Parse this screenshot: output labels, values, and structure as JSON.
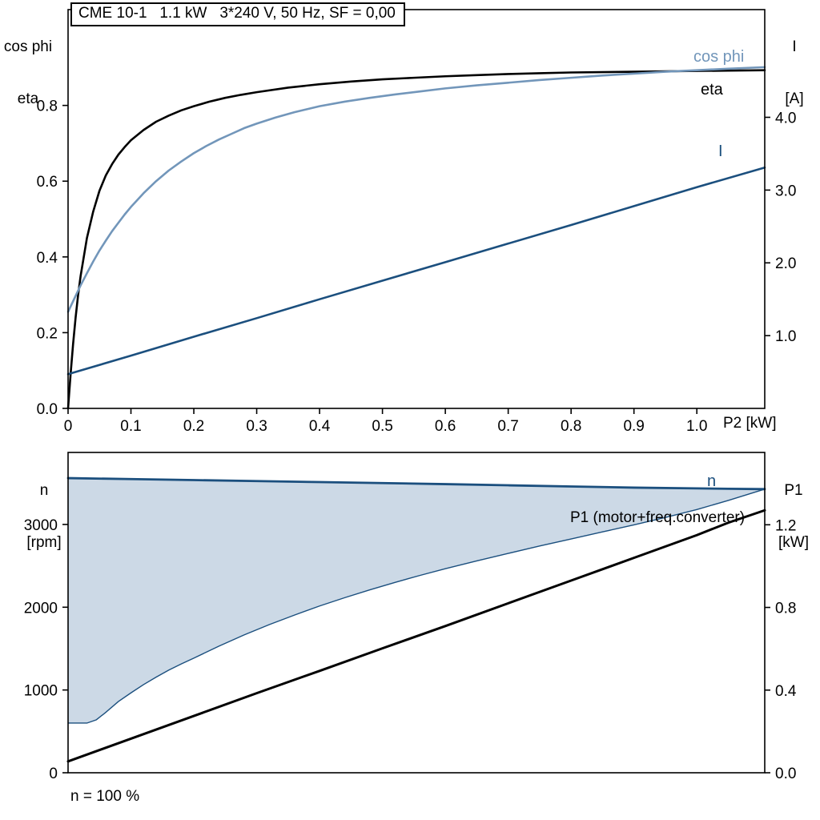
{
  "colors": {
    "eta": "#000000",
    "cos_phi": "#7296ba",
    "current": "#1b4f7e",
    "speed": "#1b4f7e",
    "p1": "#000000",
    "speed_band_fill": "#ccd9e6",
    "axis": "#000000"
  },
  "chart_data": [
    {
      "id": "top",
      "type": "line",
      "grid": false,
      "legend": "inline-labels",
      "title": "CME 10-1   1.1 kW   3*240 V, 50 Hz, SF = 0,00",
      "x_axis": {
        "label": "P2 [kW]",
        "min": 0,
        "max": 1.108,
        "ticks": [
          {
            "v": 0,
            "t": "0"
          },
          {
            "v": 0.1,
            "t": "0.1"
          },
          {
            "v": 0.2,
            "t": "0.2"
          },
          {
            "v": 0.3,
            "t": "0.3"
          },
          {
            "v": 0.4,
            "t": "0.4"
          },
          {
            "v": 0.5,
            "t": "0.5"
          },
          {
            "v": 0.6,
            "t": "0.6"
          },
          {
            "v": 0.7,
            "t": "0.7"
          },
          {
            "v": 0.8,
            "t": "0.8"
          },
          {
            "v": 0.9,
            "t": "0.9"
          },
          {
            "v": 1.0,
            "t": "1.0"
          }
        ]
      },
      "y_left": {
        "label_lines": [
          "cos phi",
          "eta"
        ],
        "min": 0,
        "max": 1.053,
        "ticks": [
          {
            "v": 0.0,
            "t": "0.0"
          },
          {
            "v": 0.2,
            "t": "0.2"
          },
          {
            "v": 0.4,
            "t": "0.4"
          },
          {
            "v": 0.6,
            "t": "0.6"
          },
          {
            "v": 0.8,
            "t": "0.8"
          }
        ]
      },
      "y_right": {
        "label_lines": [
          "I",
          "[A]"
        ],
        "min": 0,
        "max": 5.48,
        "ticks": [
          {
            "v": 1.0,
            "t": "1.0"
          },
          {
            "v": 2.0,
            "t": "2.0"
          },
          {
            "v": 3.0,
            "t": "3.0"
          },
          {
            "v": 4.0,
            "t": "4.0"
          }
        ]
      },
      "series": [
        {
          "name": "eta",
          "label": "eta",
          "axis": "left",
          "color": "#000000",
          "width": 2.6,
          "points": [
            [
              0,
              0
            ],
            [
              0.004,
              0.09
            ],
            [
              0.008,
              0.17
            ],
            [
              0.012,
              0.24
            ],
            [
              0.016,
              0.3
            ],
            [
              0.02,
              0.35
            ],
            [
              0.03,
              0.45
            ],
            [
              0.04,
              0.52
            ],
            [
              0.05,
              0.575
            ],
            [
              0.06,
              0.615
            ],
            [
              0.07,
              0.645
            ],
            [
              0.08,
              0.67
            ],
            [
              0.09,
              0.69
            ],
            [
              0.1,
              0.708
            ],
            [
              0.12,
              0.735
            ],
            [
              0.14,
              0.757
            ],
            [
              0.16,
              0.773
            ],
            [
              0.18,
              0.787
            ],
            [
              0.2,
              0.798
            ],
            [
              0.225,
              0.81
            ],
            [
              0.25,
              0.82
            ],
            [
              0.275,
              0.828
            ],
            [
              0.3,
              0.835
            ],
            [
              0.35,
              0.847
            ],
            [
              0.4,
              0.856
            ],
            [
              0.45,
              0.863
            ],
            [
              0.5,
              0.869
            ],
            [
              0.55,
              0.873
            ],
            [
              0.6,
              0.877
            ],
            [
              0.65,
              0.88
            ],
            [
              0.7,
              0.883
            ],
            [
              0.75,
              0.885
            ],
            [
              0.8,
              0.887
            ],
            [
              0.85,
              0.888
            ],
            [
              0.9,
              0.889
            ],
            [
              0.95,
              0.89
            ],
            [
              1.0,
              0.891
            ],
            [
              1.05,
              0.892
            ],
            [
              1.108,
              0.893
            ]
          ]
        },
        {
          "name": "cos-phi",
          "label": "cos phi",
          "axis": "left",
          "color": "#7296ba",
          "width": 2.6,
          "points": [
            [
              0,
              0.255
            ],
            [
              0.01,
              0.29
            ],
            [
              0.02,
              0.325
            ],
            [
              0.03,
              0.357
            ],
            [
              0.04,
              0.388
            ],
            [
              0.05,
              0.417
            ],
            [
              0.06,
              0.443
            ],
            [
              0.07,
              0.468
            ],
            [
              0.08,
              0.49
            ],
            [
              0.09,
              0.512
            ],
            [
              0.1,
              0.532
            ],
            [
              0.12,
              0.568
            ],
            [
              0.14,
              0.6
            ],
            [
              0.16,
              0.628
            ],
            [
              0.18,
              0.652
            ],
            [
              0.2,
              0.674
            ],
            [
              0.22,
              0.693
            ],
            [
              0.24,
              0.71
            ],
            [
              0.26,
              0.725
            ],
            [
              0.28,
              0.74
            ],
            [
              0.3,
              0.752
            ],
            [
              0.33,
              0.768
            ],
            [
              0.36,
              0.782
            ],
            [
              0.4,
              0.798
            ],
            [
              0.44,
              0.81
            ],
            [
              0.48,
              0.82
            ],
            [
              0.52,
              0.829
            ],
            [
              0.56,
              0.837
            ],
            [
              0.6,
              0.845
            ],
            [
              0.65,
              0.853
            ],
            [
              0.7,
              0.86
            ],
            [
              0.75,
              0.867
            ],
            [
              0.8,
              0.873
            ],
            [
              0.85,
              0.879
            ],
            [
              0.9,
              0.884
            ],
            [
              0.95,
              0.889
            ],
            [
              1.0,
              0.893
            ],
            [
              1.05,
              0.897
            ],
            [
              1.108,
              0.901
            ]
          ]
        },
        {
          "name": "I",
          "label": "I",
          "axis": "right",
          "color": "#1b4f7e",
          "width": 2.6,
          "points": [
            [
              0,
              0.47
            ],
            [
              0.1,
              0.725
            ],
            [
              0.2,
              0.985
            ],
            [
              0.3,
              1.24
            ],
            [
              0.4,
              1.5
            ],
            [
              0.5,
              1.755
            ],
            [
              0.6,
              2.01
            ],
            [
              0.7,
              2.265
            ],
            [
              0.8,
              2.52
            ],
            [
              0.9,
              2.78
            ],
            [
              1.0,
              3.04
            ],
            [
              1.108,
              3.31
            ]
          ]
        }
      ]
    },
    {
      "id": "bottom",
      "type": "line",
      "grid": false,
      "legend": "inline-labels",
      "x_axis": {
        "label": "",
        "min": 0,
        "max": 1.108,
        "ticks": []
      },
      "y_left": {
        "label_lines": [
          "n",
          "[rpm]"
        ],
        "min": 0,
        "max": 3870,
        "ticks": [
          {
            "v": 0,
            "t": "0"
          },
          {
            "v": 1000,
            "t": "1000"
          },
          {
            "v": 2000,
            "t": "2000"
          },
          {
            "v": 3000,
            "t": "3000"
          }
        ]
      },
      "y_right": {
        "label_lines": [
          "P1",
          "[kW]"
        ],
        "min": 0,
        "max": 1.55,
        "ticks": [
          {
            "v": 0.0,
            "t": "0.0"
          },
          {
            "v": 0.4,
            "t": "0.4"
          },
          {
            "v": 0.8,
            "t": "0.8"
          },
          {
            "v": 1.2,
            "t": "1.2"
          }
        ]
      },
      "series": [
        {
          "name": "speed-range",
          "type": "band",
          "axis": "left",
          "fill": "#ccd9e6",
          "color": "#1b4f7e",
          "width": 1.4,
          "upper": [
            [
              0,
              3560
            ],
            [
              0.1,
              3548
            ],
            [
              0.2,
              3536
            ],
            [
              0.3,
              3524
            ],
            [
              0.4,
              3512
            ],
            [
              0.5,
              3500
            ],
            [
              0.6,
              3487
            ],
            [
              0.7,
              3473
            ],
            [
              0.8,
              3459
            ],
            [
              0.9,
              3445
            ],
            [
              1.0,
              3436
            ],
            [
              1.05,
              3431
            ],
            [
              1.108,
              3427
            ]
          ],
          "lower": [
            [
              0,
              600
            ],
            [
              0.03,
              600
            ],
            [
              0.045,
              640
            ],
            [
              0.06,
              730
            ],
            [
              0.08,
              860
            ],
            [
              0.1,
              965
            ],
            [
              0.12,
              1065
            ],
            [
              0.14,
              1155
            ],
            [
              0.16,
              1240
            ],
            [
              0.18,
              1315
            ],
            [
              0.2,
              1385
            ],
            [
              0.24,
              1530
            ],
            [
              0.28,
              1665
            ],
            [
              0.32,
              1790
            ],
            [
              0.36,
              1905
            ],
            [
              0.4,
              2015
            ],
            [
              0.44,
              2115
            ],
            [
              0.48,
              2210
            ],
            [
              0.52,
              2300
            ],
            [
              0.56,
              2385
            ],
            [
              0.6,
              2465
            ],
            [
              0.65,
              2560
            ],
            [
              0.7,
              2650
            ],
            [
              0.75,
              2740
            ],
            [
              0.8,
              2825
            ],
            [
              0.85,
              2910
            ],
            [
              0.9,
              2995
            ],
            [
              0.95,
              3085
            ],
            [
              1.0,
              3180
            ],
            [
              1.05,
              3290
            ],
            [
              1.108,
              3427
            ]
          ]
        },
        {
          "name": "n",
          "label": "n",
          "axis": "left",
          "color": "#1b4f7e",
          "width": 2.8,
          "points": [
            [
              0,
              3560
            ],
            [
              0.1,
              3548
            ],
            [
              0.2,
              3536
            ],
            [
              0.3,
              3524
            ],
            [
              0.4,
              3512
            ],
            [
              0.5,
              3500
            ],
            [
              0.6,
              3487
            ],
            [
              0.7,
              3473
            ],
            [
              0.8,
              3459
            ],
            [
              0.9,
              3445
            ],
            [
              1.0,
              3436
            ],
            [
              1.05,
              3431
            ],
            [
              1.108,
              3427
            ]
          ]
        },
        {
          "name": "P1",
          "label": "P1 (motor+freq.converter)",
          "axis": "right",
          "color": "#000000",
          "width": 3,
          "points": [
            [
              0,
              0.055
            ],
            [
              0.1,
              0.165
            ],
            [
              0.2,
              0.275
            ],
            [
              0.3,
              0.385
            ],
            [
              0.4,
              0.493
            ],
            [
              0.5,
              0.602
            ],
            [
              0.6,
              0.71
            ],
            [
              0.7,
              0.82
            ],
            [
              0.8,
              0.93
            ],
            [
              0.9,
              1.04
            ],
            [
              1.0,
              1.15
            ],
            [
              1.05,
              1.21
            ],
            [
              1.108,
              1.27
            ]
          ]
        }
      ],
      "annotations": [
        {
          "text": "n = 100 %"
        }
      ]
    }
  ]
}
